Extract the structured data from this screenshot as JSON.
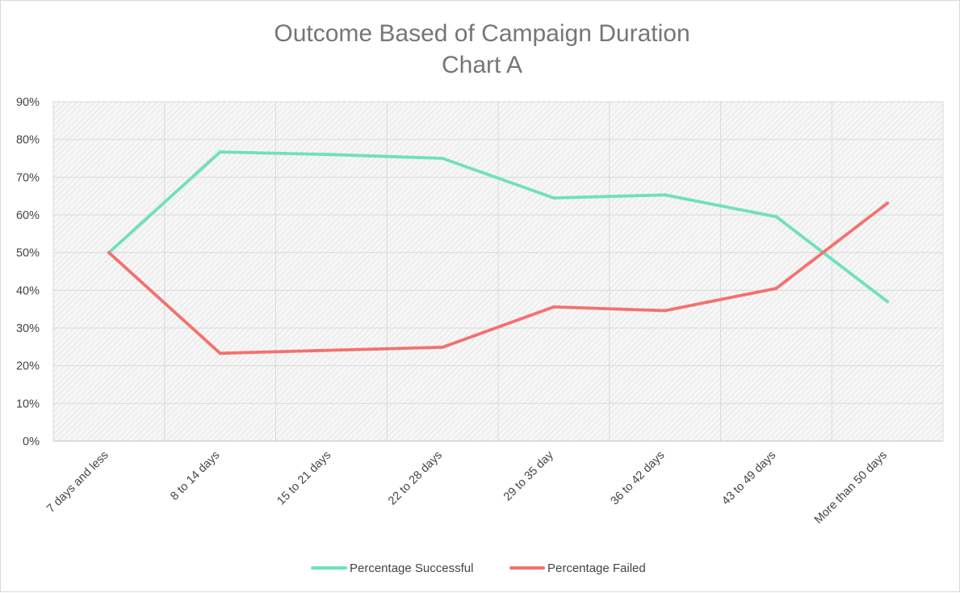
{
  "chart_data": {
    "type": "line",
    "title": "Outcome Based of Campaign Duration",
    "subtitle": "Chart A",
    "categories": [
      "7 days and less",
      "8 to 14 days",
      "15 to 21 days",
      "22 to 28 days",
      "29 to 35 day",
      "36 to 42 days",
      "43 to 49 days",
      "More than 50 days"
    ],
    "series": [
      {
        "name": "Percentage Successful",
        "color": "#6fe0bf",
        "values": [
          50,
          76.7,
          76,
          75,
          64.5,
          65.3,
          59.5,
          37
        ]
      },
      {
        "name": "Percentage Failed",
        "color": "#f4716e",
        "values": [
          50,
          23.3,
          null,
          24.9,
          35.6,
          34.6,
          40.5,
          63.1
        ]
      }
    ],
    "y_tick_labels": [
      "0%",
      "10%",
      "20%",
      "30%",
      "40%",
      "50%",
      "60%",
      "70%",
      "80%",
      "90%"
    ],
    "ylim": [
      0,
      90
    ],
    "grid": true,
    "plot_background": "hatched-gray",
    "legend_position": "bottom"
  }
}
